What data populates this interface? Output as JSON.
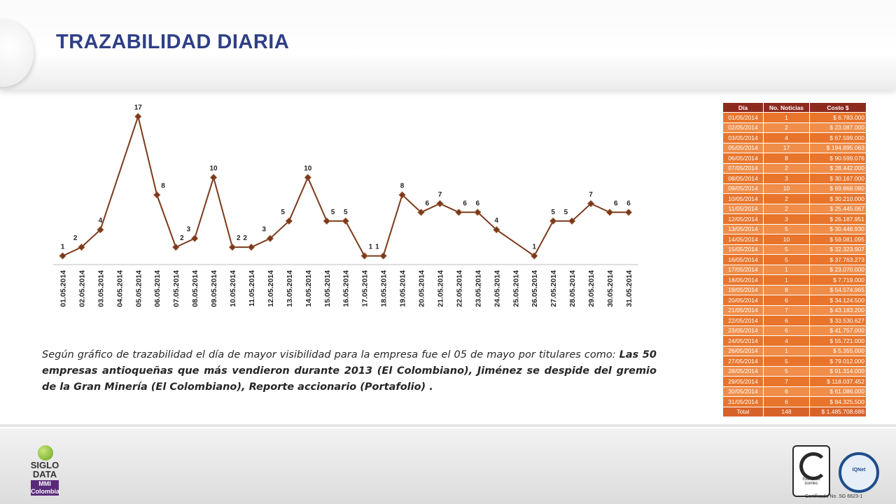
{
  "title": "TRAZABILIDAD DIARIA",
  "chart_data": {
    "type": "line",
    "categories": [
      "01.05.2014",
      "02.05.2014",
      "03.05.2014",
      "04.05.2014",
      "05.05.2014",
      "06.05.2014",
      "07.05.2014",
      "08.05.2014",
      "09.05.2014",
      "10.05.2014",
      "11.05.2014",
      "12.05.2014",
      "13.05.2014",
      "14.05.2014",
      "15.05.2014",
      "16.05.2014",
      "17.05.2014",
      "18.05.2014",
      "19.05.2014",
      "20.05.2014",
      "21.05.2014",
      "22.05.2014",
      "23.05.2014",
      "24.05.2014",
      "25.05.2014",
      "26.05.2014",
      "27.05.2014",
      "28.05.2014",
      "29.05.2014",
      "30.05.2014",
      "31.05.2014"
    ],
    "values": [
      1,
      2,
      4,
      null,
      17,
      8,
      2,
      3,
      10,
      2,
      2,
      3,
      5,
      10,
      5,
      5,
      1,
      1,
      8,
      6,
      7,
      6,
      6,
      4,
      null,
      1,
      5,
      5,
      7,
      6,
      6
    ],
    "ylim": [
      0,
      18
    ],
    "line_color": "#7a3a1a",
    "marker_color": "#7a3a1a"
  },
  "description": {
    "intro": "Según gráfico de trazabilidad  el día de mayor visibilidad para la empresa fue el 05 de mayo por  titulares como: ",
    "highlight": "Las 50 empresas antioqueñas que más vendieron durante 2013 (El Colombiano), Jiménez se despide del gremio de la Gran Minería (El Colombiano), Reporte accionario (Portafolio) ."
  },
  "table": {
    "headers": [
      "Día",
      "No. Noticias",
      "Costo $"
    ],
    "rows": [
      [
        "01/05/2014",
        "1",
        "$ 6.783.000"
      ],
      [
        "02/05/2014",
        "2",
        "$ 23.087.000"
      ],
      [
        "03/05/2014",
        "4",
        "$ 67.599.000"
      ],
      [
        "05/05/2014",
        "17",
        "$ 194.895.063"
      ],
      [
        "06/05/2014",
        "8",
        "$ 90.599.076"
      ],
      [
        "07/05/2014",
        "2",
        "$ 28.442.000"
      ],
      [
        "08/05/2014",
        "3",
        "$ 30.167.000"
      ],
      [
        "09/05/2014",
        "10",
        "$ 69.868.080"
      ],
      [
        "10/05/2014",
        "2",
        "$ 30.210.000"
      ],
      [
        "11/05/2014",
        "2",
        "$ 25.445.067"
      ],
      [
        "12/05/2014",
        "3",
        "$ 26.187.951"
      ],
      [
        "13/05/2014",
        "5",
        "$ 30.446.930"
      ],
      [
        "14/05/2014",
        "10",
        "$ 59.081.095"
      ],
      [
        "15/05/2014",
        "5",
        "$ 32.323.907"
      ],
      [
        "16/05/2014",
        "5",
        "$ 37.763.273"
      ],
      [
        "17/05/2014",
        "1",
        "$ 23.070.000"
      ],
      [
        "18/05/2014",
        "1",
        "$ 7.719.000"
      ],
      [
        "19/05/2014",
        "8",
        "$ 54.574.965"
      ],
      [
        "20/05/2014",
        "6",
        "$ 34.124.500"
      ],
      [
        "21/05/2014",
        "7",
        "$ 43.183.200"
      ],
      [
        "22/05/2014",
        "6",
        "$ 33.530.627"
      ],
      [
        "23/05/2014",
        "6",
        "$ 41.757.000"
      ],
      [
        "24/05/2014",
        "4",
        "$ 55.721.000"
      ],
      [
        "26/05/2014",
        "1",
        "$ 5.355.000"
      ],
      [
        "27/05/2014",
        "5",
        "$ 79.012.000"
      ],
      [
        "28/05/2014",
        "5",
        "$ 91.314.000"
      ],
      [
        "29/05/2014",
        "7",
        "$ 118.037.452"
      ],
      [
        "30/05/2014",
        "6",
        "$ 61.086.000"
      ],
      [
        "31/05/2014",
        "6",
        "$ 84.325.500"
      ]
    ],
    "total": [
      "Total",
      "148",
      "$ 1.485.708.686"
    ]
  },
  "footer": {
    "logo_line1": "SIGLO",
    "logo_line2": "DATA",
    "logo_sub1": "MMI",
    "logo_sub2": "Colombia",
    "cert_iso": "ISO 9001",
    "cert_icontec": "icontec",
    "cert_iqnet": "IQNet",
    "cert_number": "Certificado No. SG 6623-1"
  }
}
